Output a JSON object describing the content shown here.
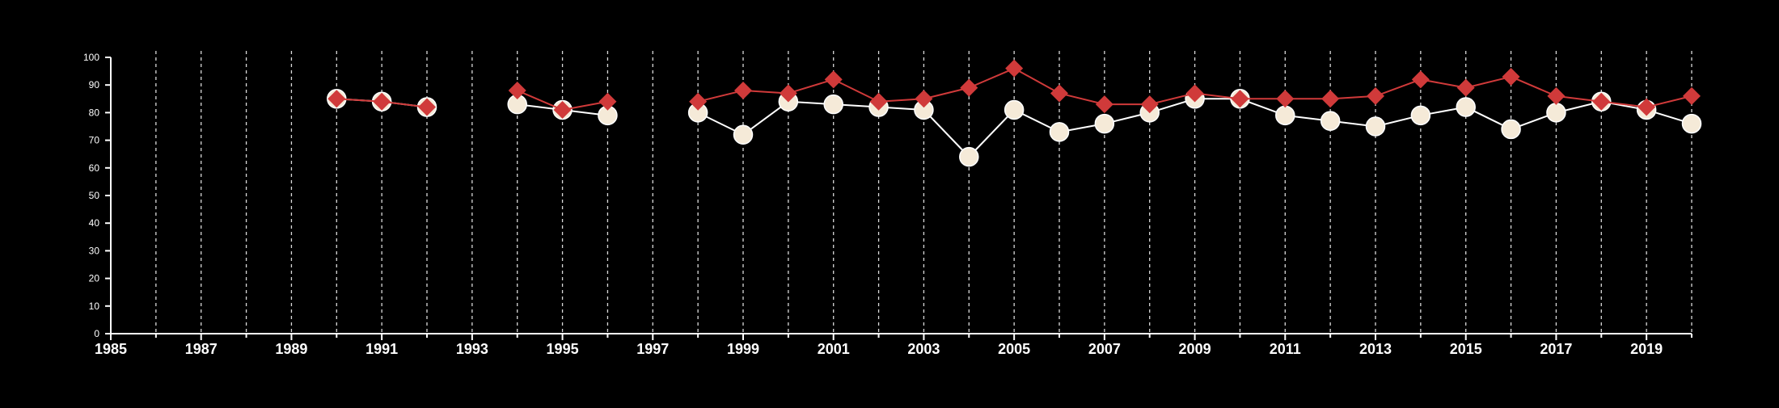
{
  "chart_data": {
    "type": "line",
    "title": "",
    "xlabel": "",
    "ylabel": "",
    "xlim": [
      1985,
      2020
    ],
    "ylim": [
      0,
      100
    ],
    "x_ticks": [
      1985,
      1987,
      1989,
      1991,
      1993,
      1995,
      1997,
      1999,
      2001,
      2003,
      2005,
      2007,
      2009,
      2011,
      2013,
      2015,
      2017,
      2019
    ],
    "y_ticks": [
      0,
      10,
      20,
      30,
      40,
      50,
      60,
      70,
      80,
      90,
      100
    ],
    "vertical_grid": "dashed, every year from 1986 to 2020",
    "legend": "none",
    "background_color": "#000000",
    "series": [
      {
        "marker": "circle",
        "color": "#ffffff",
        "marker_color": "#f5ead8",
        "points": [
          {
            "x": 1990,
            "y": 85
          },
          {
            "x": 1991,
            "y": 84
          },
          {
            "x": 1992,
            "y": 82
          },
          {
            "x": 1994,
            "y": 83
          },
          {
            "x": 1995,
            "y": 81
          },
          {
            "x": 1996,
            "y": 79
          },
          {
            "x": 1998,
            "y": 80
          },
          {
            "x": 1999,
            "y": 72
          },
          {
            "x": 2000,
            "y": 84
          },
          {
            "x": 2001,
            "y": 83
          },
          {
            "x": 2002,
            "y": 82
          },
          {
            "x": 2003,
            "y": 81
          },
          {
            "x": 2004,
            "y": 64
          },
          {
            "x": 2005,
            "y": 81
          },
          {
            "x": 2006,
            "y": 73
          },
          {
            "x": 2007,
            "y": 76
          },
          {
            "x": 2008,
            "y": 80
          },
          {
            "x": 2009,
            "y": 85
          },
          {
            "x": 2010,
            "y": 85
          },
          {
            "x": 2011,
            "y": 79
          },
          {
            "x": 2012,
            "y": 77
          },
          {
            "x": 2013,
            "y": 75
          },
          {
            "x": 2014,
            "y": 79
          },
          {
            "x": 2015,
            "y": 82
          },
          {
            "x": 2016,
            "y": 74
          },
          {
            "x": 2017,
            "y": 80
          },
          {
            "x": 2018,
            "y": 84
          },
          {
            "x": 2019,
            "y": 81
          },
          {
            "x": 2020,
            "y": 76
          }
        ]
      },
      {
        "marker": "diamond",
        "color": "#d03a3a",
        "points": [
          {
            "x": 1990,
            "y": 85
          },
          {
            "x": 1991,
            "y": 84
          },
          {
            "x": 1992,
            "y": 82
          },
          {
            "x": 1994,
            "y": 88
          },
          {
            "x": 1995,
            "y": 81
          },
          {
            "x": 1996,
            "y": 84
          },
          {
            "x": 1998,
            "y": 84
          },
          {
            "x": 1999,
            "y": 88
          },
          {
            "x": 2000,
            "y": 87
          },
          {
            "x": 2001,
            "y": 92
          },
          {
            "x": 2002,
            "y": 84
          },
          {
            "x": 2003,
            "y": 85
          },
          {
            "x": 2004,
            "y": 89
          },
          {
            "x": 2005,
            "y": 96
          },
          {
            "x": 2006,
            "y": 87
          },
          {
            "x": 2007,
            "y": 83
          },
          {
            "x": 2008,
            "y": 83
          },
          {
            "x": 2009,
            "y": 87
          },
          {
            "x": 2010,
            "y": 85
          },
          {
            "x": 2011,
            "y": 85
          },
          {
            "x": 2012,
            "y": 85
          },
          {
            "x": 2013,
            "y": 86
          },
          {
            "x": 2014,
            "y": 92
          },
          {
            "x": 2015,
            "y": 89
          },
          {
            "x": 2016,
            "y": 93
          },
          {
            "x": 2017,
            "y": 86
          },
          {
            "x": 2018,
            "y": 84
          },
          {
            "x": 2019,
            "y": 82
          },
          {
            "x": 2020,
            "y": 86
          }
        ]
      }
    ]
  }
}
